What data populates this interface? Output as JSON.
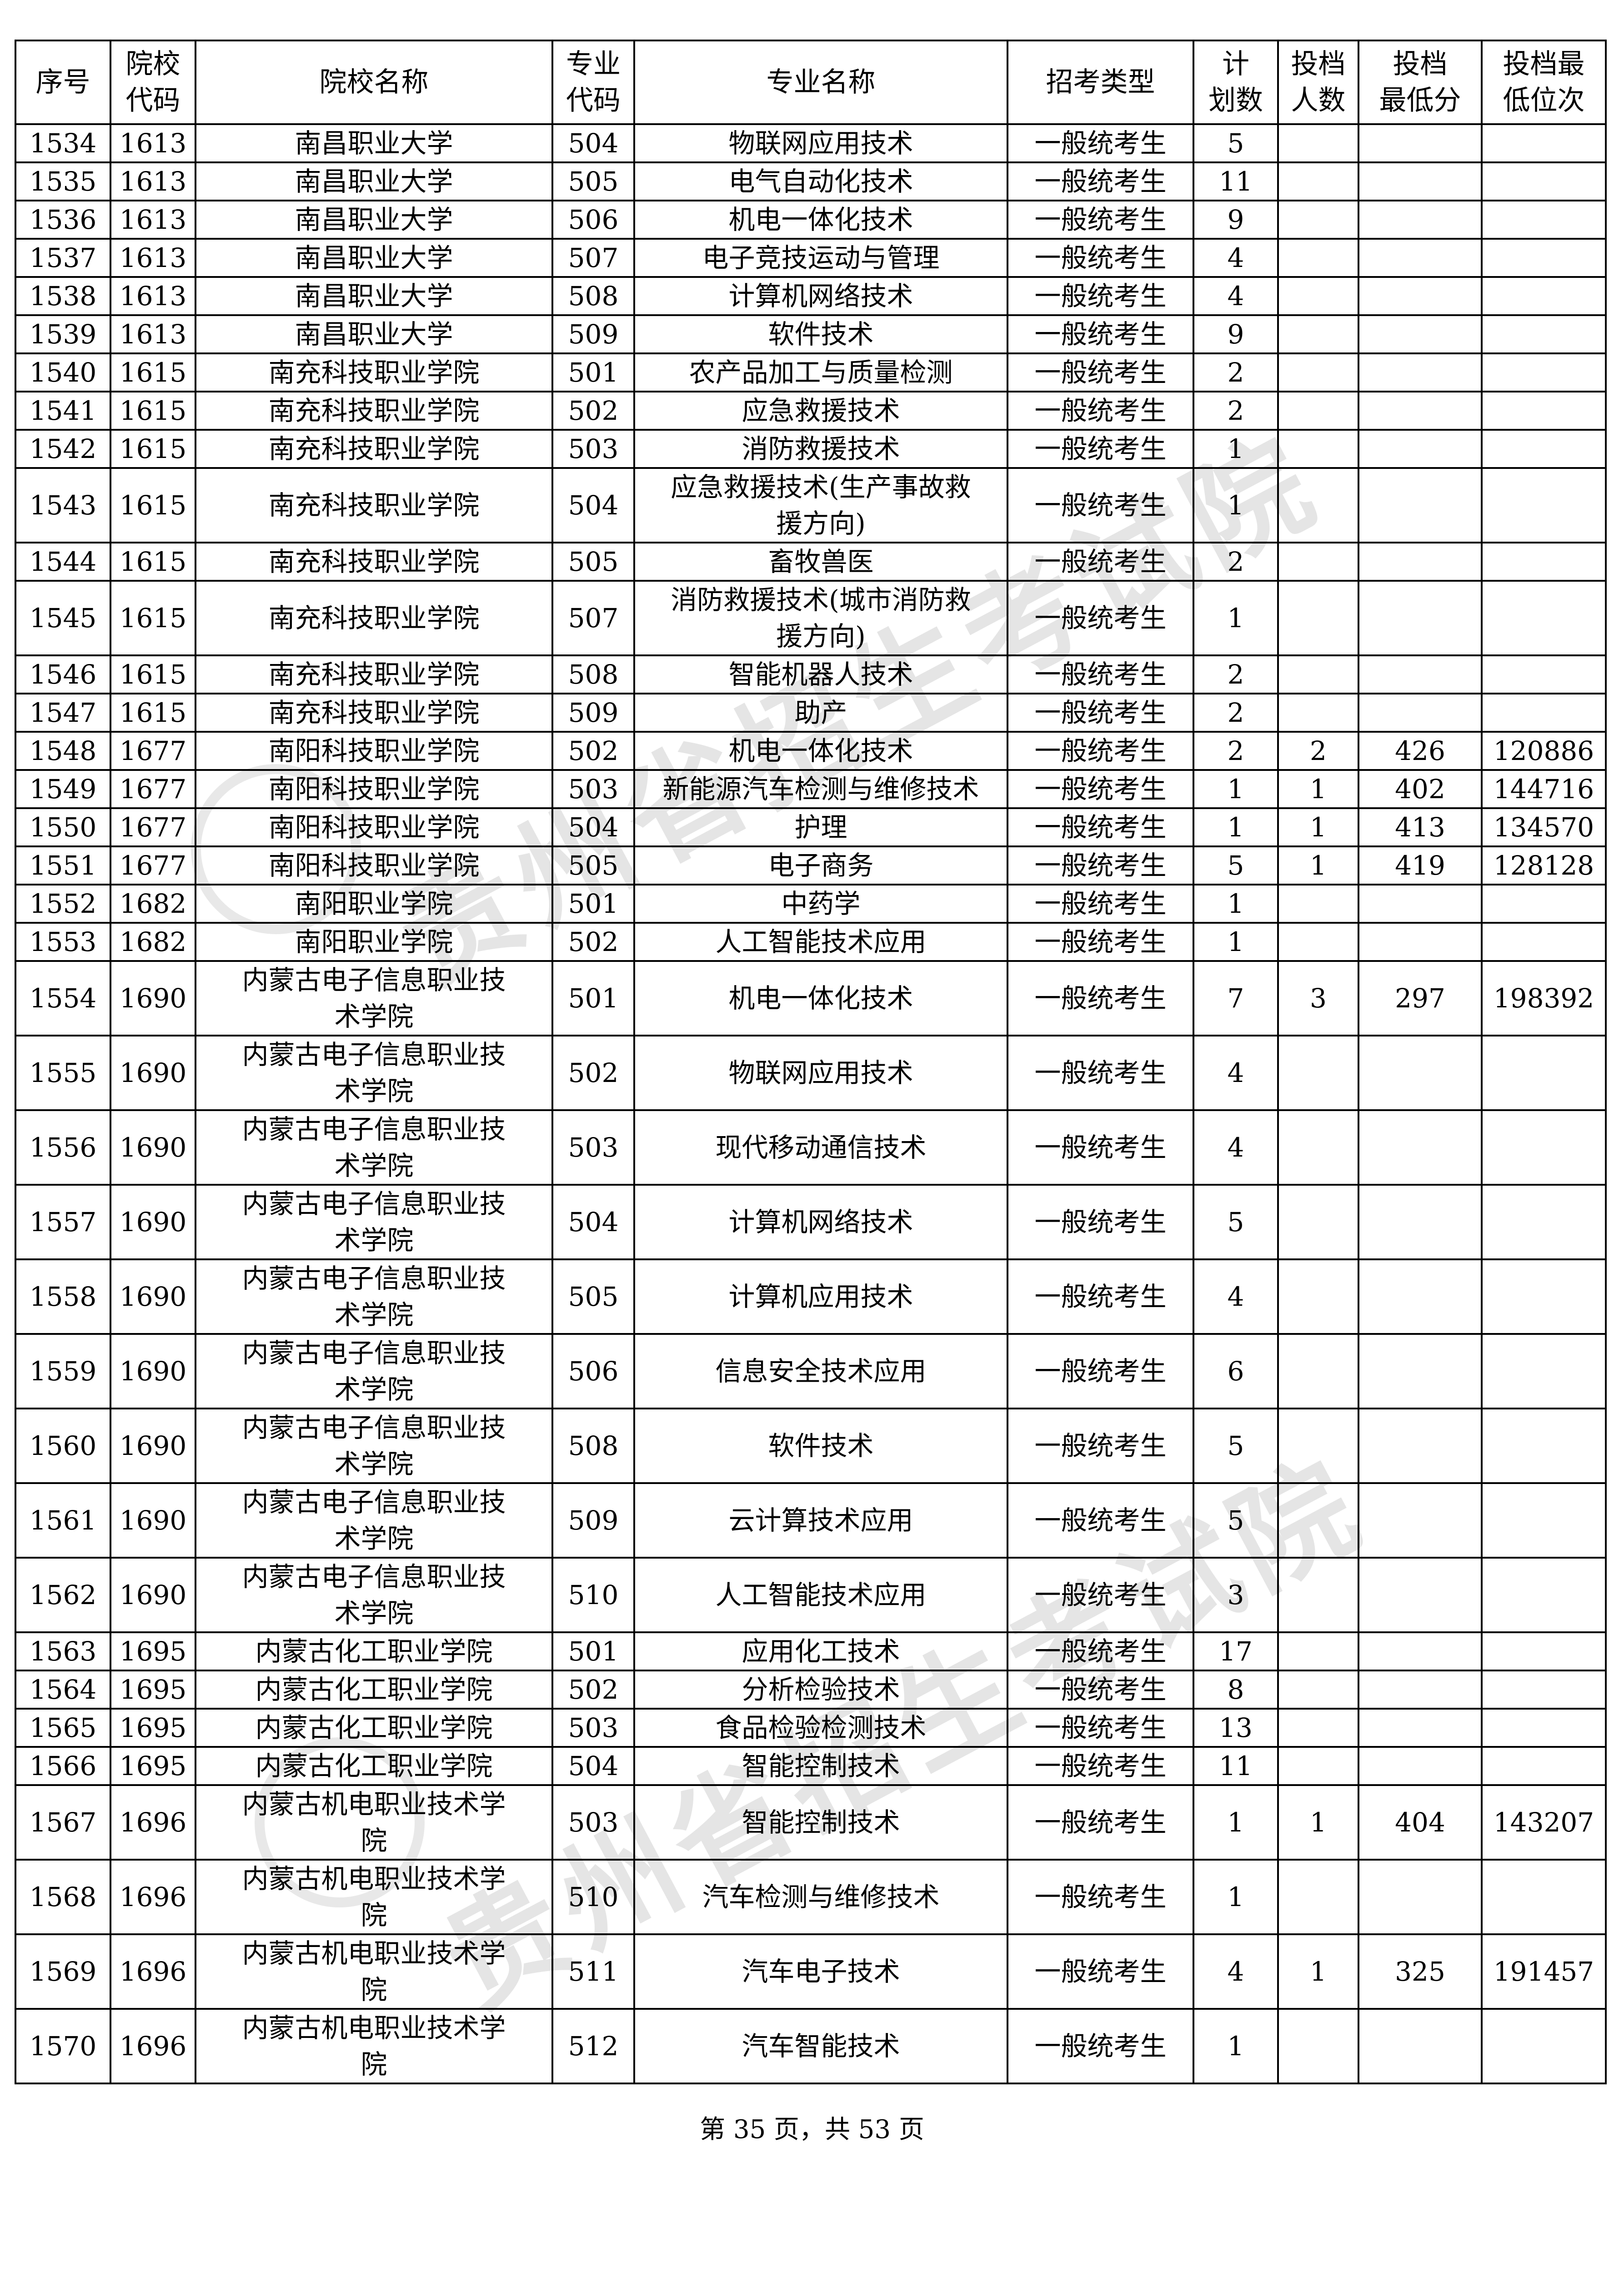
{
  "watermark": {
    "text": "贵州省招生考试院"
  },
  "header": [
    {
      "lines": [
        "序号"
      ]
    },
    {
      "lines": [
        "院校",
        "代码"
      ]
    },
    {
      "lines": [
        "院校名称"
      ]
    },
    {
      "lines": [
        "专业",
        "代码"
      ]
    },
    {
      "lines": [
        "专业名称"
      ]
    },
    {
      "lines": [
        "招考类型"
      ]
    },
    {
      "lines": [
        "计",
        "划数"
      ]
    },
    {
      "lines": [
        "投档",
        "人数"
      ]
    },
    {
      "lines": [
        "投档",
        "最低分"
      ]
    },
    {
      "lines": [
        "投档最",
        "低位次"
      ]
    }
  ],
  "rows": [
    [
      "1534",
      "1613",
      "南昌职业大学",
      "504",
      "物联网应用技术",
      "一般统考生",
      "5",
      "",
      "",
      ""
    ],
    [
      "1535",
      "1613",
      "南昌职业大学",
      "505",
      "电气自动化技术",
      "一般统考生",
      "11",
      "",
      "",
      ""
    ],
    [
      "1536",
      "1613",
      "南昌职业大学",
      "506",
      "机电一体化技术",
      "一般统考生",
      "9",
      "",
      "",
      ""
    ],
    [
      "1537",
      "1613",
      "南昌职业大学",
      "507",
      "电子竞技运动与管理",
      "一般统考生",
      "4",
      "",
      "",
      ""
    ],
    [
      "1538",
      "1613",
      "南昌职业大学",
      "508",
      "计算机网络技术",
      "一般统考生",
      "4",
      "",
      "",
      ""
    ],
    [
      "1539",
      "1613",
      "南昌职业大学",
      "509",
      "软件技术",
      "一般统考生",
      "9",
      "",
      "",
      ""
    ],
    [
      "1540",
      "1615",
      "南充科技职业学院",
      "501",
      "农产品加工与质量检测",
      "一般统考生",
      "2",
      "",
      "",
      ""
    ],
    [
      "1541",
      "1615",
      "南充科技职业学院",
      "502",
      "应急救援技术",
      "一般统考生",
      "2",
      "",
      "",
      ""
    ],
    [
      "1542",
      "1615",
      "南充科技职业学院",
      "503",
      "消防救援技术",
      "一般统考生",
      "1",
      "",
      "",
      ""
    ],
    [
      "1543",
      "1615",
      "南充科技职业学院",
      "504",
      "应急救援技术(生产事故救援方向)",
      "一般统考生",
      "1",
      "",
      "",
      ""
    ],
    [
      "1544",
      "1615",
      "南充科技职业学院",
      "505",
      "畜牧兽医",
      "一般统考生",
      "2",
      "",
      "",
      ""
    ],
    [
      "1545",
      "1615",
      "南充科技职业学院",
      "507",
      "消防救援技术(城市消防救援方向)",
      "一般统考生",
      "1",
      "",
      "",
      ""
    ],
    [
      "1546",
      "1615",
      "南充科技职业学院",
      "508",
      "智能机器人技术",
      "一般统考生",
      "2",
      "",
      "",
      ""
    ],
    [
      "1547",
      "1615",
      "南充科技职业学院",
      "509",
      "助产",
      "一般统考生",
      "2",
      "",
      "",
      ""
    ],
    [
      "1548",
      "1677",
      "南阳科技职业学院",
      "502",
      "机电一体化技术",
      "一般统考生",
      "2",
      "2",
      "426",
      "120886"
    ],
    [
      "1549",
      "1677",
      "南阳科技职业学院",
      "503",
      "新能源汽车检测与维修技术",
      "一般统考生",
      "1",
      "1",
      "402",
      "144716"
    ],
    [
      "1550",
      "1677",
      "南阳科技职业学院",
      "504",
      "护理",
      "一般统考生",
      "1",
      "1",
      "413",
      "134570"
    ],
    [
      "1551",
      "1677",
      "南阳科技职业学院",
      "505",
      "电子商务",
      "一般统考生",
      "5",
      "1",
      "419",
      "128128"
    ],
    [
      "1552",
      "1682",
      "南阳职业学院",
      "501",
      "中药学",
      "一般统考生",
      "1",
      "",
      "",
      ""
    ],
    [
      "1553",
      "1682",
      "南阳职业学院",
      "502",
      "人工智能技术应用",
      "一般统考生",
      "1",
      "",
      "",
      ""
    ],
    [
      "1554",
      "1690",
      "内蒙古电子信息职业技术学院",
      "501",
      "机电一体化技术",
      "一般统考生",
      "7",
      "3",
      "297",
      "198392"
    ],
    [
      "1555",
      "1690",
      "内蒙古电子信息职业技术学院",
      "502",
      "物联网应用技术",
      "一般统考生",
      "4",
      "",
      "",
      ""
    ],
    [
      "1556",
      "1690",
      "内蒙古电子信息职业技术学院",
      "503",
      "现代移动通信技术",
      "一般统考生",
      "4",
      "",
      "",
      ""
    ],
    [
      "1557",
      "1690",
      "内蒙古电子信息职业技术学院",
      "504",
      "计算机网络技术",
      "一般统考生",
      "5",
      "",
      "",
      ""
    ],
    [
      "1558",
      "1690",
      "内蒙古电子信息职业技术学院",
      "505",
      "计算机应用技术",
      "一般统考生",
      "4",
      "",
      "",
      ""
    ],
    [
      "1559",
      "1690",
      "内蒙古电子信息职业技术学院",
      "506",
      "信息安全技术应用",
      "一般统考生",
      "6",
      "",
      "",
      ""
    ],
    [
      "1560",
      "1690",
      "内蒙古电子信息职业技术学院",
      "508",
      "软件技术",
      "一般统考生",
      "5",
      "",
      "",
      ""
    ],
    [
      "1561",
      "1690",
      "内蒙古电子信息职业技术学院",
      "509",
      "云计算技术应用",
      "一般统考生",
      "5",
      "",
      "",
      ""
    ],
    [
      "1562",
      "1690",
      "内蒙古电子信息职业技术学院",
      "510",
      "人工智能技术应用",
      "一般统考生",
      "3",
      "",
      "",
      ""
    ],
    [
      "1563",
      "1695",
      "内蒙古化工职业学院",
      "501",
      "应用化工技术",
      "一般统考生",
      "17",
      "",
      "",
      ""
    ],
    [
      "1564",
      "1695",
      "内蒙古化工职业学院",
      "502",
      "分析检验技术",
      "一般统考生",
      "8",
      "",
      "",
      ""
    ],
    [
      "1565",
      "1695",
      "内蒙古化工职业学院",
      "503",
      "食品检验检测技术",
      "一般统考生",
      "13",
      "",
      "",
      ""
    ],
    [
      "1566",
      "1695",
      "内蒙古化工职业学院",
      "504",
      "智能控制技术",
      "一般统考生",
      "11",
      "",
      "",
      ""
    ],
    [
      "1567",
      "1696",
      "内蒙古机电职业技术学院",
      "503",
      "智能控制技术",
      "一般统考生",
      "1",
      "1",
      "404",
      "143207"
    ],
    [
      "1568",
      "1696",
      "内蒙古机电职业技术学院",
      "510",
      "汽车检测与维修技术",
      "一般统考生",
      "1",
      "",
      "",
      ""
    ],
    [
      "1569",
      "1696",
      "内蒙古机电职业技术学院",
      "511",
      "汽车电子技术",
      "一般统考生",
      "4",
      "1",
      "325",
      "191457"
    ],
    [
      "1570",
      "1696",
      "内蒙古机电职业技术学院",
      "512",
      "汽车智能技术",
      "一般统考生",
      "1",
      "",
      "",
      ""
    ]
  ],
  "footer": {
    "page_text": "第 35 页，共 53 页"
  }
}
